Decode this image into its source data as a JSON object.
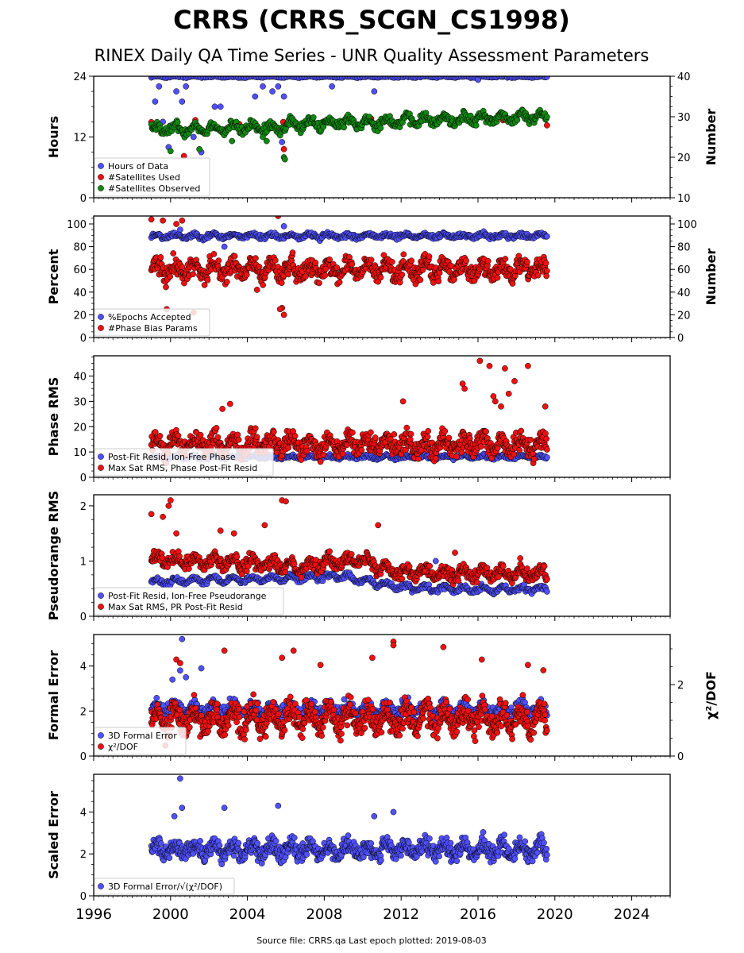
{
  "header": {
    "title": "CRRS (CRRS_SCGN_CS1998)",
    "subtitle": "RINEX Daily QA Time Series - UNR Quality Assessment Parameters"
  },
  "footer": {
    "text": "Source file: CRRS.qa Last epoch plotted: 2019-08-03"
  },
  "colors": {
    "blue": "#5050ff",
    "red": "#ee1111",
    "green": "#118811"
  },
  "chart_data": [
    {
      "type": "scatter",
      "ylabel": "Hours",
      "ylabel_right": "Number",
      "xlim": [
        1996,
        2026
      ],
      "ylim": [
        0,
        24
      ],
      "ylim_right": [
        10,
        40
      ],
      "yticks": [
        0,
        12,
        24
      ],
      "yticks_right": [
        10,
        20,
        30,
        40
      ],
      "legend_position": "lower-left",
      "series": [
        {
          "name": "Hours of Data",
          "color": "blue",
          "axis": "left",
          "start": 1999.0,
          "end": 2019.59,
          "base": 23.85,
          "amp": 0.1,
          "noise": 0.1,
          "n": 260,
          "outliers": [
            [
              1999.2,
              19
            ],
            [
              1999.4,
              22
            ],
            [
              1999.6,
              15
            ],
            [
              1999.9,
              10
            ],
            [
              2000.3,
              21
            ],
            [
              2000.6,
              19
            ],
            [
              2000.8,
              22
            ],
            [
              2001.2,
              12
            ],
            [
              2001.6,
              9
            ],
            [
              2002.3,
              18
            ],
            [
              2002.6,
              18
            ],
            [
              2003.1,
              14
            ],
            [
              2004.4,
              20
            ],
            [
              2004.8,
              22
            ],
            [
              2005.3,
              21
            ],
            [
              2005.6,
              22
            ],
            [
              2005.9,
              20
            ],
            [
              2005.8,
              11
            ],
            [
              2008.4,
              22
            ],
            [
              2010.6,
              21
            ],
            [
              2016.0,
              23.3
            ]
          ]
        },
        {
          "name": "#Satellites Used",
          "color": "red",
          "axis": "right",
          "start": 1999.0,
          "end": 2019.59,
          "base": 28.4,
          "amp": 0.8,
          "noise": 0.9,
          "n": 10,
          "outliers": [
            [
              2000.7,
              20.3
            ],
            [
              2005.9,
              22
            ]
          ]
        },
        {
          "name": "#Satellites Observed",
          "color": "green",
          "axis": "right",
          "start": 1999.0,
          "end": 2019.59,
          "base": 27.0,
          "trend": 0.15,
          "amp": 1.0,
          "noise": 1.0,
          "n": 560,
          "outliers": [
            [
              2000.0,
              21.5
            ],
            [
              2001.5,
              22
            ],
            [
              2003.2,
              24
            ],
            [
              2005.0,
              24
            ],
            [
              2005.9,
              20
            ],
            [
              2005.95,
              19.5
            ],
            [
              2004.8,
              25
            ]
          ]
        }
      ]
    },
    {
      "type": "scatter",
      "ylabel": "Percent",
      "ylabel_right": "Number",
      "xlim": [
        1996,
        2026
      ],
      "ylim": [
        0,
        107
      ],
      "ylim_right": [
        0,
        107
      ],
      "yticks": [
        0,
        20,
        40,
        60,
        80,
        100
      ],
      "yticks_right": [
        0,
        20,
        40,
        60,
        80,
        100
      ],
      "legend_position": "lower-left",
      "series": [
        {
          "name": "%Epochs Accepted",
          "color": "blue",
          "axis": "left",
          "start": 1999.0,
          "end": 2019.59,
          "base": 89.5,
          "amp": 1.5,
          "noise": 1.8,
          "n": 520,
          "outliers": [
            [
              2000.5,
              95
            ],
            [
              2005.9,
              98
            ],
            [
              2002.8,
              80
            ]
          ]
        },
        {
          "name": "#Phase Bias Params",
          "color": "red",
          "axis": "right",
          "start": 1999.0,
          "end": 2019.59,
          "base": 60,
          "amp": 6,
          "noise": 7,
          "n": 760,
          "outliers": [
            [
              1999.0,
              104
            ],
            [
              1999.6,
              103
            ],
            [
              2000.3,
              100
            ],
            [
              2000.6,
              103
            ],
            [
              2005.6,
              107
            ],
            [
              2005.8,
              26
            ],
            [
              2005.9,
              20
            ],
            [
              2005.7,
              25
            ],
            [
              1999.8,
              25
            ],
            [
              2001.2,
              22
            ],
            [
              2004.5,
              42
            ]
          ]
        }
      ]
    },
    {
      "type": "scatter",
      "ylabel": "Phase RMS",
      "xlim": [
        1996,
        2026
      ],
      "ylim": [
        0,
        48
      ],
      "yticks": [
        0,
        10,
        20,
        30,
        40
      ],
      "legend_position": "lower-left",
      "series": [
        {
          "name": "Post-Fit Resid, Ion-Free Phase",
          "color": "blue",
          "axis": "left",
          "start": 1999.0,
          "end": 2019.59,
          "base": 8.0,
          "amp": 0.5,
          "noise": 0.6,
          "n": 420,
          "outliers": []
        },
        {
          "name": "Max Sat RMS, Phase Post-Fit Resid",
          "color": "red",
          "axis": "left",
          "start": 1999.0,
          "end": 2019.59,
          "base": 13,
          "amp": 2.5,
          "noise": 3.5,
          "n": 780,
          "outliers": [
            [
              2003.1,
              29
            ],
            [
              2002.7,
              27
            ],
            [
              2012.1,
              30
            ],
            [
              2015.2,
              37
            ],
            [
              2015.3,
              35
            ],
            [
              2016.1,
              46
            ],
            [
              2016.6,
              44
            ],
            [
              2017.4,
              43
            ],
            [
              2017.9,
              38
            ],
            [
              2018.6,
              44
            ],
            [
              2016.8,
              32
            ],
            [
              2017.2,
              28
            ],
            [
              2019.5,
              28
            ],
            [
              2016.9,
              30
            ],
            [
              2017.6,
              33
            ]
          ]
        }
      ]
    },
    {
      "type": "scatter",
      "ylabel": "Pseudorange RMS",
      "xlim": [
        1996,
        2026
      ],
      "ylim": [
        0,
        2.2
      ],
      "yticks": [
        0,
        1,
        2
      ],
      "legend_position": "lower-left",
      "series": [
        {
          "name": "Post-Fit Resid, Ion-Free Pseudorange",
          "color": "blue",
          "axis": "left",
          "start": 1999.0,
          "end": 2019.59,
          "base": 0.6,
          "amp": 0.05,
          "noise": 0.04,
          "n": 520,
          "steps": [
            [
              1999.0,
              0.62
            ],
            [
              2009.0,
              0.72
            ],
            [
              2012.0,
              0.52
            ],
            [
              2016.0,
              0.48
            ],
            [
              2019.6,
              0.5
            ]
          ],
          "outliers": [
            [
              2013.8,
              1.0
            ]
          ]
        },
        {
          "name": "Max Sat RMS, PR Post-Fit Resid",
          "color": "red",
          "axis": "left",
          "start": 1999.0,
          "end": 2019.59,
          "base": 1.0,
          "amp": 0.08,
          "noise": 0.1,
          "n": 760,
          "steps": [
            [
              1999.0,
              1.05
            ],
            [
              2007.0,
              0.9
            ],
            [
              2009.5,
              1.05
            ],
            [
              2012.0,
              0.8
            ],
            [
              2019.6,
              0.75
            ]
          ],
          "outliers": [
            [
              1999.0,
              1.85
            ],
            [
              1999.6,
              1.8
            ],
            [
              1999.9,
              2.0
            ],
            [
              2000.0,
              2.1
            ],
            [
              2000.3,
              1.5
            ],
            [
              2002.6,
              1.55
            ],
            [
              2003.3,
              1.5
            ],
            [
              2004.9,
              1.65
            ],
            [
              2005.8,
              2.1
            ],
            [
              2006.0,
              2.08
            ],
            [
              2010.8,
              1.65
            ],
            [
              2014.8,
              1.15
            ],
            [
              2018.2,
              1.05
            ]
          ]
        }
      ]
    },
    {
      "type": "scatter",
      "ylabel": "Formal Error",
      "ylabel_right": "χ²/DOF",
      "xlim": [
        1996,
        2026
      ],
      "ylim": [
        0,
        5.4
      ],
      "ylim_right": [
        0,
        3.4
      ],
      "yticks": [
        0,
        2,
        4
      ],
      "yticks_right": [
        0,
        2
      ],
      "legend_position": "lower-left",
      "series": [
        {
          "name": "3D Formal Error",
          "color": "blue",
          "axis": "left",
          "start": 1999.0,
          "end": 2019.59,
          "base": 2.1,
          "amp": 0.2,
          "noise": 0.25,
          "n": 520,
          "outliers": [
            [
              2000.6,
              5.2
            ],
            [
              2000.5,
              3.8
            ],
            [
              2001.6,
              3.9
            ],
            [
              2000.1,
              3.4
            ],
            [
              2000.8,
              3.5
            ]
          ]
        },
        {
          "name": "χ²/DOF",
          "color": "red",
          "axis": "right",
          "start": 1999.0,
          "end": 2019.59,
          "base": 1.05,
          "amp": 0.25,
          "noise": 0.32,
          "n": 900,
          "outliers": [
            [
              2000.3,
              2.7
            ],
            [
              2000.5,
              2.6
            ],
            [
              2002.8,
              2.95
            ],
            [
              2005.8,
              2.75
            ],
            [
              2006.4,
              2.95
            ],
            [
              2007.8,
              2.55
            ],
            [
              2010.5,
              2.75
            ],
            [
              2011.6,
              3.2
            ],
            [
              2011.6,
              3.1
            ],
            [
              2014.2,
              3.05
            ],
            [
              2016.2,
              2.7
            ],
            [
              2018.6,
              2.55
            ],
            [
              2019.4,
              2.4
            ]
          ]
        }
      ]
    },
    {
      "type": "scatter",
      "ylabel": "Scaled Error",
      "xlim": [
        1996,
        2026
      ],
      "ylim": [
        0,
        5.8
      ],
      "yticks": [
        0,
        2,
        4
      ],
      "legend_position": "lower-left",
      "series": [
        {
          "name": "3D Formal Error/√(χ²/DOF)",
          "color": "blue",
          "axis": "left",
          "start": 1999.0,
          "end": 2019.59,
          "base": 2.2,
          "amp": 0.25,
          "noise": 0.35,
          "n": 900,
          "outliers": [
            [
              2000.5,
              5.6
            ],
            [
              2000.6,
              4.2
            ],
            [
              2002.8,
              4.2
            ],
            [
              2005.6,
              4.3
            ],
            [
              2010.6,
              3.8
            ],
            [
              2011.6,
              4.0
            ],
            [
              2000.2,
              3.8
            ]
          ]
        }
      ]
    }
  ],
  "x_axis": {
    "ticks": [
      1996,
      2000,
      2004,
      2008,
      2012,
      2016,
      2020,
      2024
    ]
  }
}
